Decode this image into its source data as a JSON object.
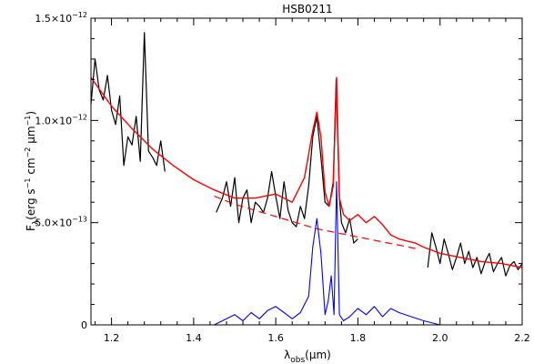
{
  "chart_data": {
    "type": "line",
    "title": "HSB0211",
    "xlabel": {
      "base": "λ",
      "sub": "obs",
      "unit": "(μm)"
    },
    "ylabel": {
      "base": "F",
      "sub": "λ",
      "unit_parts": [
        "(erg s",
        "−1",
        " cm",
        "−2",
        " μm",
        "−1",
        ")"
      ]
    },
    "xlim": [
      1.15,
      2.2
    ],
    "ylim": [
      0,
      1.5e-12
    ],
    "x_ticks": [
      {
        "value": 1.2,
        "label": "1.2"
      },
      {
        "value": 1.4,
        "label": "1.4"
      },
      {
        "value": 1.6,
        "label": "1.6"
      },
      {
        "value": 1.8,
        "label": "1.8"
      },
      {
        "value": 2.0,
        "label": "2.0"
      },
      {
        "value": 2.2,
        "label": "2.2"
      }
    ],
    "y_ticks": [
      {
        "value": 0,
        "mantissa": "0",
        "exp": ""
      },
      {
        "value": 5e-13,
        "mantissa": "5.0×10",
        "exp": "−13"
      },
      {
        "value": 1e-12,
        "mantissa": "1.0×10",
        "exp": "−12"
      },
      {
        "value": 1.5e-12,
        "mantissa": "1.5×10",
        "exp": "−12"
      }
    ],
    "colors": {
      "observed": "#000000",
      "model": "#ff0000",
      "components": "#0000ff"
    },
    "series": [
      {
        "style": "solid-black",
        "segments": [
          {
            "x": [
              1.15,
              1.16,
              1.17,
              1.18,
              1.19,
              1.2,
              1.21,
              1.22,
              1.23,
              1.24,
              1.25,
              1.26,
              1.27,
              1.28,
              1.29,
              1.3,
              1.31,
              1.32,
              1.33
            ],
            "y": [
              1.08e-12,
              1.3e-12,
              1.15e-12,
              1.1e-12,
              1.22e-12,
              1.05e-12,
              9.8e-13,
              1.12e-12,
              7.8e-13,
              9.2e-13,
              8.8e-13,
              1.02e-12,
              8e-13,
              1.43e-12,
              8.5e-13,
              8.2e-13,
              7.8e-13,
              9e-13,
              7.5e-13
            ]
          },
          {
            "x": [
              1.455,
              1.47,
              1.48,
              1.49,
              1.5,
              1.51,
              1.52,
              1.53,
              1.54,
              1.55,
              1.56,
              1.57,
              1.58,
              1.59,
              1.6,
              1.61,
              1.62,
              1.63,
              1.64,
              1.65,
              1.66,
              1.67,
              1.68,
              1.69,
              1.7,
              1.71,
              1.72,
              1.73,
              1.74,
              1.747,
              1.755,
              1.76,
              1.77,
              1.78,
              1.79,
              1.8
            ],
            "y": [
              5.5e-13,
              6.2e-13,
              7e-13,
              5.8e-13,
              7.2e-13,
              5e-13,
              6.2e-13,
              6.6e-13,
              5e-13,
              6e-13,
              5.8e-13,
              5.5e-13,
              6.2e-13,
              7.5e-13,
              6.3e-13,
              5.2e-13,
              7e-13,
              5.6e-13,
              5e-13,
              4.8e-13,
              5.8e-13,
              5.2e-13,
              6.8e-13,
              9.2e-13,
              1.02e-12,
              8.2e-13,
              6e-13,
              5.8e-13,
              7e-13,
              1.2e-12,
              6.2e-13,
              5e-13,
              4.5e-13,
              5.2e-13,
              4e-13,
              4.2e-13
            ]
          },
          {
            "x": [
              1.97,
              1.98,
              1.99,
              2.0,
              2.01,
              2.02,
              2.03,
              2.04,
              2.05,
              2.06,
              2.07,
              2.08,
              2.09,
              2.1,
              2.11,
              2.12,
              2.13,
              2.14,
              2.15,
              2.16,
              2.17,
              2.18,
              2.19,
              2.2
            ],
            "y": [
              2.8e-13,
              4.5e-13,
              3.8e-13,
              3e-13,
              4.2e-13,
              3.5e-13,
              2.7e-13,
              3.3e-13,
              4e-13,
              3e-13,
              3.6e-13,
              2.8e-13,
              3.3e-13,
              2.5e-13,
              3.1e-13,
              3.5e-13,
              2.6e-13,
              3e-13,
              3.3e-13,
              2.4e-13,
              2.9e-13,
              3.1e-13,
              2.7e-13,
              3e-13
            ]
          }
        ]
      },
      {
        "style": "solid-red",
        "segments": [
          {
            "x": [
              1.15,
              1.2,
              1.25,
              1.3,
              1.35,
              1.4,
              1.45,
              1.5,
              1.55,
              1.6,
              1.64,
              1.67,
              1.69,
              1.7,
              1.71,
              1.72,
              1.73,
              1.74,
              1.748,
              1.755,
              1.765,
              1.78,
              1.8,
              1.82,
              1.84,
              1.86,
              1.88,
              1.9,
              1.92,
              1.94,
              1.96,
              2.0,
              2.05,
              2.1,
              2.15,
              2.2
            ],
            "y": [
              1.21e-12,
              1.07e-12,
              9.6e-13,
              8.6e-13,
              7.8e-13,
              7.1e-13,
              6.6e-13,
              6.2e-13,
              6.2e-13,
              6.4e-13,
              6e-13,
              7.2e-13,
              9.5e-13,
              1.04e-12,
              9.2e-13,
              6.5e-13,
              5.8e-13,
              6.8e-13,
              1.21e-12,
              6.2e-13,
              5.4e-13,
              5.1e-13,
              5.4e-13,
              5e-13,
              5.3e-13,
              4.9e-13,
              4.4e-13,
              4.2e-13,
              4.1e-13,
              4e-13,
              3.8e-13,
              3.5e-13,
              3.3e-13,
              3.1e-13,
              3e-13,
              2.8e-13
            ]
          }
        ]
      },
      {
        "style": "dashed-red",
        "segments": [
          {
            "x": [
              1.45,
              1.5,
              1.55,
              1.6,
              1.65,
              1.7,
              1.75,
              1.8,
              1.85,
              1.9,
              1.95
            ],
            "y": [
              6.3e-13,
              5.9e-13,
              5.6e-13,
              5.3e-13,
              5e-13,
              4.7e-13,
              4.5e-13,
              4.3e-13,
              4.1e-13,
              3.9e-13,
              3.7e-13
            ]
          }
        ]
      },
      {
        "style": "solid-blue",
        "segments": [
          {
            "x": [
              1.15,
              1.3,
              1.45,
              1.48,
              1.5,
              1.52,
              1.54,
              1.56,
              1.58,
              1.6,
              1.62,
              1.64,
              1.66,
              1.68,
              1.69,
              1.7,
              1.71,
              1.72,
              1.728,
              1.735,
              1.742,
              1.748,
              1.755,
              1.765,
              1.78,
              1.8,
              1.82,
              1.84,
              1.86,
              1.88,
              1.9,
              1.93,
              1.96,
              2.0,
              2.2
            ],
            "y": [
              0.0,
              0.0,
              0.0,
              3e-14,
              5e-14,
              2e-14,
              6e-14,
              3e-14,
              7e-14,
              9e-14,
              6e-14,
              3e-14,
              6e-14,
              1.4e-13,
              3.8e-13,
              5.2e-13,
              3.5e-13,
              5e-14,
              1.2e-13,
              2.4e-13,
              5e-14,
              7e-13,
              5e-14,
              2e-14,
              4e-14,
              8e-14,
              5e-14,
              9e-14,
              4e-14,
              8e-14,
              6e-14,
              4e-14,
              2e-14,
              0.0,
              0.0
            ]
          }
        ]
      }
    ]
  }
}
